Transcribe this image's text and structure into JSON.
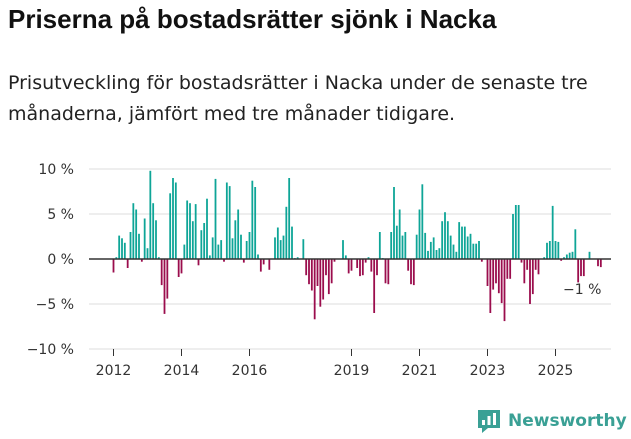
{
  "title": "Priserna på bostadsrätter sjönk i Nacka",
  "subtitle": "Prisutveckling för bostadsrätter i Nacka under de senaste tre månaderna, jämfört med tre månader tidigare.",
  "brand": {
    "name": "Newsworthy",
    "color": "#3aa095"
  },
  "colors": {
    "positive": "#0ea597",
    "negative": "#9b0d4d"
  },
  "chart_data": {
    "type": "bar",
    "title": "Priserna på bostadsrätter sjönk i Nacka",
    "ylabel": "",
    "xlabel": "",
    "ylim": [
      -10,
      10
    ],
    "yticks": [
      10,
      5,
      0,
      -5,
      -10
    ],
    "ytick_labels": [
      "10 %",
      "5 %",
      "0 %",
      "−5 %",
      "−10 %"
    ],
    "xticks": [
      2012,
      2014,
      2016,
      2019,
      2021,
      2023,
      2025
    ],
    "xtick_labels": [
      "2012",
      "2014",
      "2016",
      "2019",
      "2021",
      "2023",
      "2025"
    ],
    "x_start": 2012,
    "bars_per_year": 12,
    "values": [
      -1.5,
      0.2,
      2.6,
      2.3,
      1.8,
      -1.0,
      3.0,
      6.2,
      5.5,
      2.8,
      -0.3,
      4.5,
      1.2,
      9.8,
      6.2,
      4.3,
      0.2,
      -2.9,
      -6.1,
      -4.4,
      7.3,
      9.0,
      8.5,
      -2.0,
      -1.6,
      1.6,
      6.5,
      6.2,
      4.2,
      6.1,
      -0.7,
      3.2,
      4.0,
      6.7,
      0.4,
      2.4,
      8.9,
      1.6,
      2.1,
      -0.3,
      8.5,
      8.1,
      2.3,
      4.3,
      5.5,
      2.7,
      -0.4,
      2.0,
      3.0,
      8.7,
      8.0,
      0.5,
      -1.4,
      -0.6,
      0.0,
      -1.2,
      0.0,
      2.4,
      3.5,
      2.1,
      2.6,
      5.8,
      9.0,
      3.6,
      0.1,
      0.2,
      0.0,
      2.2,
      -1.8,
      -2.8,
      -3.5,
      -6.7,
      -3.0,
      -5.3,
      -4.5,
      -1.8,
      -3.9,
      -2.7,
      -0.3,
      0.0,
      0.0,
      2.1,
      0.4,
      -1.6,
      -1.3,
      0.0,
      -1.0,
      -1.9,
      -1.8,
      -0.4,
      0.2,
      -1.4,
      -6.0,
      -1.8,
      3.0,
      0.1,
      -2.7,
      -2.8,
      3.0,
      8.0,
      3.7,
      5.5,
      2.6,
      3.0,
      -1.3,
      -2.8,
      -2.9,
      2.7,
      5.5,
      8.3,
      2.9,
      0.9,
      1.9,
      2.4,
      1.0,
      1.2,
      4.2,
      5.2,
      4.2,
      2.6,
      1.6,
      0.8,
      4.1,
      3.6,
      3.6,
      2.5,
      2.8,
      1.7,
      1.7,
      2.0,
      -0.3,
      0.0,
      -3.0,
      -6.0,
      -3.4,
      -2.7,
      -3.8,
      -4.9,
      -6.9,
      -2.2,
      -2.2,
      5.0,
      6.0,
      6.0,
      -0.4,
      -2.7,
      -1.2,
      -5.0,
      -3.9,
      -1.2,
      -1.7,
      0.0,
      0.2,
      1.8,
      2.0,
      5.9,
      2.0,
      1.9,
      -0.2,
      0.2,
      0.5,
      0.7,
      0.8,
      3.3,
      -2.6,
      -1.9,
      -1.9,
      0.0,
      0.8,
      0.0,
      0.0,
      -0.8,
      -0.9
    ],
    "annotation": {
      "label": "−1 %",
      "target": "last"
    }
  }
}
